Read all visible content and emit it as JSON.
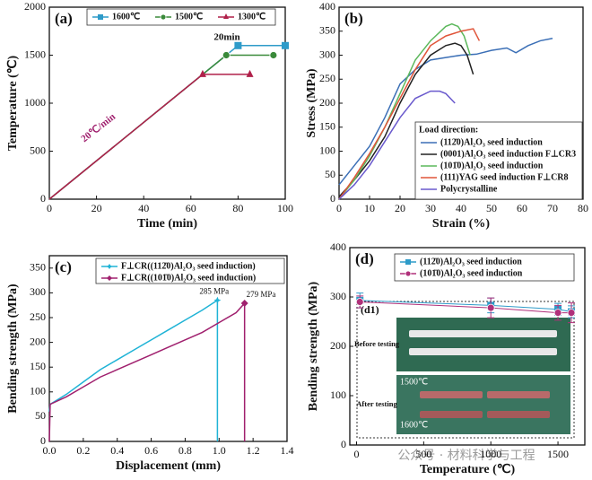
{
  "chart_data": [
    {
      "type": "line",
      "panel_label": "(a)",
      "x_label": "Time (min)",
      "y_label": "Temperature (℃)",
      "xlim": [
        0,
        100
      ],
      "xticks": [
        0,
        20,
        40,
        60,
        80,
        100
      ],
      "ylim": [
        0,
        2000
      ],
      "yticks": [
        0,
        500,
        1000,
        1500,
        2000
      ],
      "annotations": [
        "20min",
        "20℃/min"
      ],
      "series": [
        {
          "name": "1600℃",
          "color": "#2e9bc9",
          "marker": "square",
          "x": [
            0,
            80,
            100
          ],
          "values": [
            0,
            1600,
            1600
          ]
        },
        {
          "name": "1500℃",
          "color": "#3a8a3a",
          "marker": "circle",
          "x": [
            0,
            75,
            95
          ],
          "values": [
            0,
            1500,
            1500
          ]
        },
        {
          "name": "1300℃",
          "color": "#b0204a",
          "marker": "triangle",
          "x": [
            0,
            65,
            85
          ],
          "values": [
            0,
            1300,
            1300
          ]
        }
      ]
    },
    {
      "type": "line",
      "panel_label": "(b)",
      "x_label": "Strain (%)",
      "y_label": "Stress (MPa)",
      "xlim": [
        0,
        80
      ],
      "xticks": [
        0,
        10,
        20,
        30,
        40,
        50,
        60,
        70,
        80
      ],
      "ylim": [
        0,
        400
      ],
      "yticks": [
        0,
        50,
        100,
        150,
        200,
        250,
        300,
        350,
        400
      ],
      "legend_title": "Load direction:",
      "series": [
        {
          "name": "(112̄0)Al₂O₃ seed induction",
          "color": "#3b6fb6",
          "x": [
            0,
            5,
            10,
            15,
            20,
            25,
            30,
            35,
            40,
            45,
            50,
            55,
            58,
            62,
            66,
            70
          ],
          "values": [
            30,
            70,
            110,
            170,
            240,
            270,
            290,
            295,
            300,
            302,
            310,
            315,
            305,
            320,
            330,
            335
          ]
        },
        {
          "name": "(0001)Al₂O₃ seed induction F⊥CR3",
          "color": "#222222",
          "x": [
            0,
            5,
            10,
            15,
            20,
            25,
            30,
            35,
            38,
            40,
            42,
            44
          ],
          "values": [
            5,
            40,
            80,
            130,
            200,
            260,
            300,
            320,
            325,
            320,
            300,
            260
          ]
        },
        {
          "name": "(101̄0)Al₂O₃ seed induction",
          "color": "#5cb85c",
          "x": [
            0,
            5,
            10,
            15,
            20,
            25,
            30,
            35,
            37,
            39,
            41,
            43
          ],
          "values": [
            0,
            40,
            90,
            150,
            220,
            290,
            330,
            360,
            365,
            360,
            340,
            300
          ]
        },
        {
          "name": "(111)YAG seed induction  F⊥CR8",
          "color": "#e0553a",
          "x": [
            0,
            5,
            10,
            15,
            20,
            25,
            30,
            35,
            40,
            44,
            46
          ],
          "values": [
            0,
            45,
            95,
            150,
            210,
            270,
            320,
            340,
            350,
            355,
            330
          ]
        },
        {
          "name": "Polycrystalline",
          "color": "#6a5acd",
          "x": [
            0,
            5,
            10,
            15,
            20,
            25,
            30,
            33,
            35,
            38
          ],
          "values": [
            0,
            30,
            70,
            120,
            170,
            210,
            225,
            225,
            220,
            200
          ]
        }
      ]
    },
    {
      "type": "line",
      "panel_label": "(c)",
      "x_label": "Displacement (mm)",
      "y_label": "Bending strength (MPa)",
      "xlim": [
        0,
        1.4
      ],
      "xticks": [
        {
          "value": 0,
          "label": "0.0"
        },
        0.2,
        0.4,
        0.6,
        0.8,
        {
          "value": 1,
          "label": "1.0"
        },
        1.2,
        1.4
      ],
      "ylim": [
        0,
        375
      ],
      "yticks": [
        0,
        50,
        100,
        150,
        200,
        250,
        300,
        350
      ],
      "series": [
        {
          "name": "F⊥CR((112̄0)Al₂O₃ seed induction)",
          "color": "#1fb3d6",
          "marker": "star",
          "peak_label": "285 MPa",
          "x": [
            0,
            0.005,
            0.1,
            0.2,
            0.3,
            0.4,
            0.5,
            0.6,
            0.7,
            0.8,
            0.9,
            0.99,
            0.99
          ],
          "values": [
            60,
            75,
            95,
            120,
            145,
            165,
            185,
            205,
            225,
            245,
            265,
            285,
            0
          ]
        },
        {
          "name": "F⊥CR((101̄0)Al₂O₃ seed induction)",
          "color": "#a0206e",
          "marker": "diamond",
          "peak_label": "279 MPa",
          "x": [
            0,
            0.005,
            0.1,
            0.2,
            0.3,
            0.4,
            0.5,
            0.6,
            0.7,
            0.8,
            0.9,
            1.0,
            1.1,
            1.15,
            1.15
          ],
          "values": [
            0,
            75,
            90,
            110,
            130,
            145,
            160,
            175,
            190,
            205,
            220,
            240,
            260,
            279,
            0
          ]
        }
      ]
    },
    {
      "type": "scatter",
      "panel_label": "(d)",
      "x_label": "Temperature (℃)",
      "y_label": "Bending strength (MPa)",
      "xlim": [
        -50,
        1700
      ],
      "xticks": [
        0,
        500,
        1000,
        1500
      ],
      "ylim": [
        0,
        400
      ],
      "yticks": [
        0,
        100,
        200,
        300,
        400
      ],
      "inset": {
        "label": "(d1)",
        "before": "Before testing",
        "after": "After testing",
        "temps": [
          "1500℃",
          "1600℃"
        ]
      },
      "series": [
        {
          "name": "(112̄0)Al₂O₃ seed induction",
          "color": "#2e9bc9",
          "marker": "square",
          "x": [
            25,
            1000,
            1500,
            1600
          ],
          "values": [
            293,
            283,
            275,
            270
          ],
          "errors": [
            15,
            15,
            12,
            12
          ]
        },
        {
          "name": "(101̄0)Al₂O₃ seed induction",
          "color": "#b0307a",
          "marker": "circle",
          "x": [
            25,
            1000,
            1500,
            1600
          ],
          "values": [
            290,
            278,
            268,
            268
          ],
          "errors": [
            12,
            20,
            15,
            20
          ]
        }
      ]
    }
  ],
  "watermark": "公众号 · 材料科学与工程"
}
